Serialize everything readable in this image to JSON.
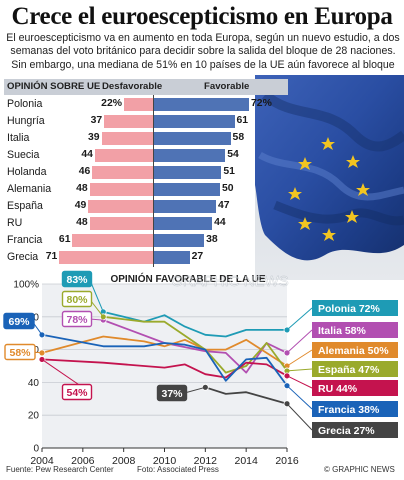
{
  "title": "Crece el euroescepticismo en Europa",
  "intro": [
    "El euroescepticismo va en aumento en toda Europa, según un nuevo estudio, a dos",
    "semanas del voto británico para decidir sobre la salida del bloque de 28 naciones.",
    "Sin embargo, una mediana de 51% en 10 países de la UE aún favorece al bloque"
  ],
  "opinion": {
    "header": "OPINIÓN SOBRE UE",
    "unfavorable": "Desfavorable",
    "favorable": "Favorable",
    "rows": [
      {
        "country": "Polonia",
        "neg": "22%",
        "pos": "72%",
        "neg_v": 22,
        "pos_v": 72
      },
      {
        "country": "Hungría",
        "neg": "37",
        "pos": "61",
        "neg_v": 37,
        "pos_v": 61
      },
      {
        "country": "Italia",
        "neg": "39",
        "pos": "58",
        "neg_v": 39,
        "pos_v": 58
      },
      {
        "country": "Suecia",
        "neg": "44",
        "pos": "54",
        "neg_v": 44,
        "pos_v": 54
      },
      {
        "country": "Holanda",
        "neg": "46",
        "pos": "51",
        "neg_v": 46,
        "pos_v": 51
      },
      {
        "country": "Alemania",
        "neg": "48",
        "pos": "50",
        "neg_v": 48,
        "pos_v": 50
      },
      {
        "country": "España",
        "neg": "49",
        "pos": "47",
        "neg_v": 49,
        "pos_v": 47
      },
      {
        "country": "RU",
        "neg": "48",
        "pos": "44",
        "neg_v": 48,
        "pos_v": 44
      },
      {
        "country": "Francia",
        "neg": "61",
        "pos": "38",
        "neg_v": 61,
        "pos_v": 38
      },
      {
        "country": "Grecia",
        "neg": "71",
        "pos": "27",
        "neg_v": 71,
        "pos_v": 27
      }
    ]
  },
  "chart_data": {
    "type": "line",
    "title": "OPINIÓN FAVORABLE DE LA UE",
    "x": [
      2004,
      2005,
      2006,
      2007,
      2008,
      2009,
      2010,
      2011,
      2012,
      2013,
      2014,
      2015,
      2016
    ],
    "xticks": [
      "2004",
      "2006",
      "2008",
      "2010",
      "2012",
      "2014",
      "2016"
    ],
    "yticks": [
      "100%",
      "80",
      "60",
      "40",
      "20",
      "0"
    ],
    "ylim": [
      0,
      100
    ],
    "series": [
      {
        "name": "Polonia 72%",
        "color": "#1e9bb5",
        "start_label": "83%",
        "values": [
          null,
          null,
          null,
          83,
          80,
          77,
          81,
          74,
          69,
          68,
          72,
          72,
          72
        ]
      },
      {
        "name": "Italia 58%",
        "color": "#b24fb1",
        "start_label": "78%",
        "values": [
          null,
          null,
          null,
          78,
          null,
          null,
          64,
          null,
          59,
          58,
          46,
          64,
          58
        ]
      },
      {
        "name": "Alemania 50%",
        "color": "#e08a2c",
        "start_label": "58%",
        "values": [
          58,
          null,
          null,
          68,
          null,
          65,
          62,
          66,
          60,
          60,
          66,
          58,
          50
        ]
      },
      {
        "name": "España 47%",
        "color": "#9aaa2c",
        "start_label": "80%",
        "values": [
          null,
          null,
          null,
          80,
          null,
          77,
          77,
          null,
          60,
          46,
          50,
          64,
          47
        ]
      },
      {
        "name": "RU 44%",
        "color": "#c4134e",
        "start_label": "54%",
        "values": [
          54,
          null,
          null,
          52,
          null,
          50,
          49,
          51,
          45,
          43,
          52,
          51,
          44
        ]
      },
      {
        "name": "Francia 38%",
        "color": "#1a63b8",
        "start_label": "69%",
        "values": [
          69,
          null,
          null,
          62,
          null,
          62,
          64,
          63,
          60,
          41,
          54,
          55,
          38
        ]
      },
      {
        "name": "Grecia 27%",
        "color": "#444444",
        "start_label": "37%",
        "values": [
          null,
          null,
          null,
          null,
          null,
          null,
          null,
          null,
          37,
          33,
          34,
          null,
          27
        ]
      }
    ]
  },
  "watermark": "GRAPHIC NEWS",
  "footer": {
    "source": "Fuente: Pew Research Center",
    "photo": "Foto: Associated Press",
    "credit": "© GRAPHIC NEWS"
  }
}
